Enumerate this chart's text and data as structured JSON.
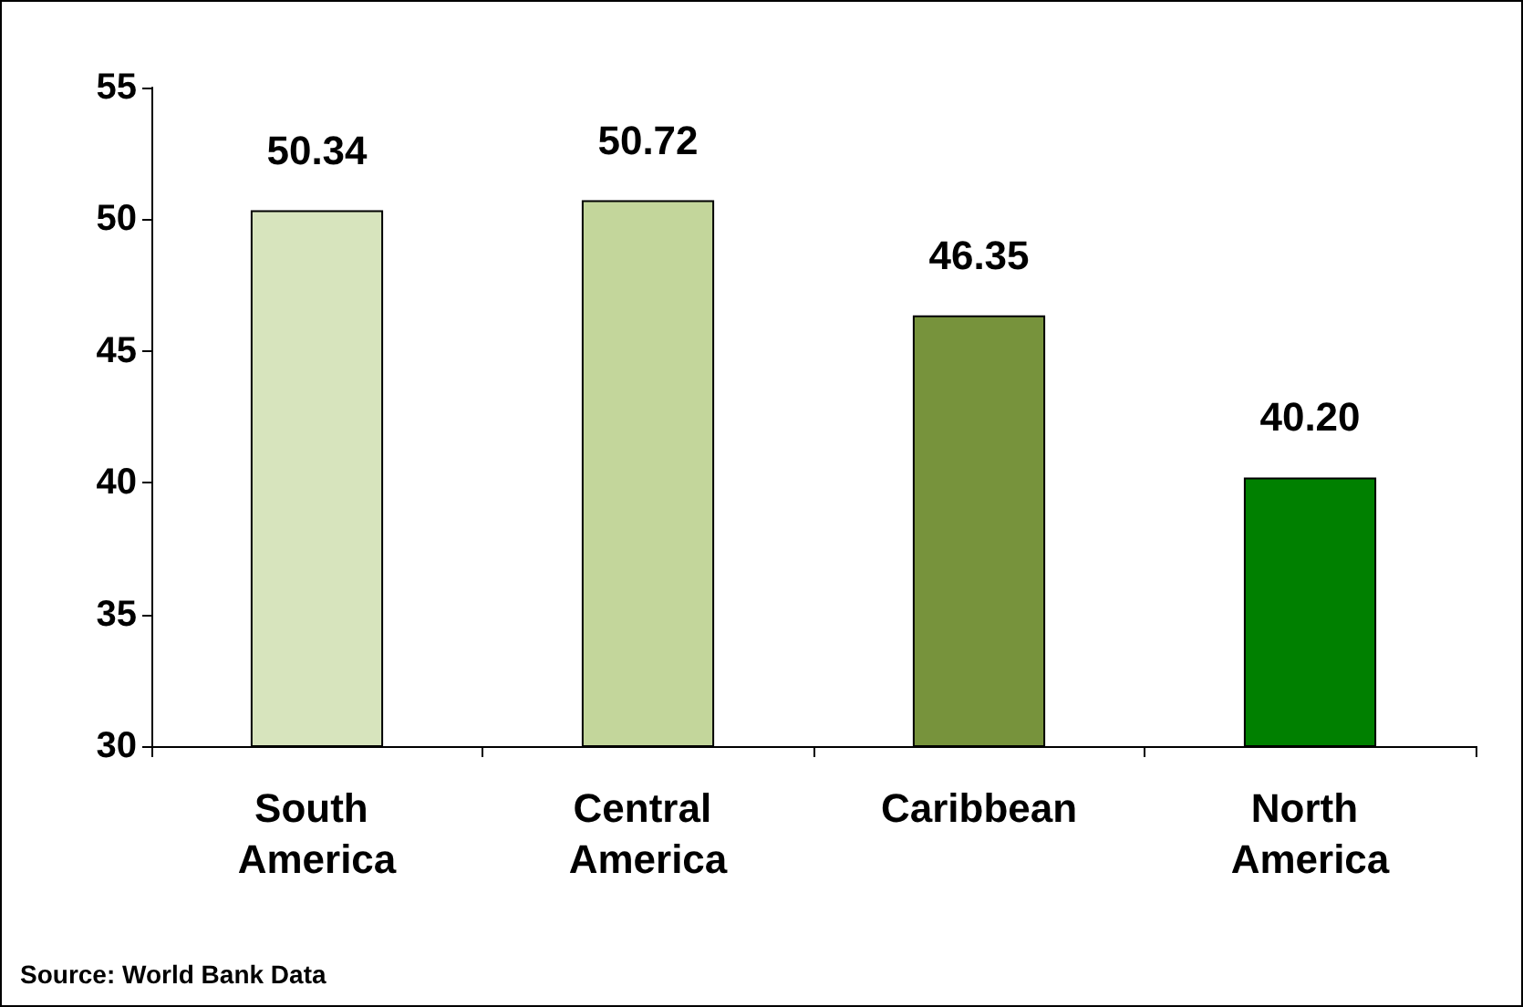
{
  "chart_data": {
    "type": "bar",
    "categories": [
      "South America",
      "Central America",
      "Caribbean",
      "North America"
    ],
    "values": [
      50.34,
      50.72,
      46.35,
      40.2
    ],
    "value_labels": [
      "50.34",
      "50.72",
      "46.35",
      "40.20"
    ],
    "colors": [
      "#d7e4bd",
      "#c3d69b",
      "#77933c",
      "#008000"
    ],
    "ylim": [
      30,
      55
    ],
    "yticks": [
      30,
      35,
      40,
      45,
      50,
      55
    ],
    "grid": false,
    "annotations": [
      "Source: World Bank Data"
    ]
  }
}
